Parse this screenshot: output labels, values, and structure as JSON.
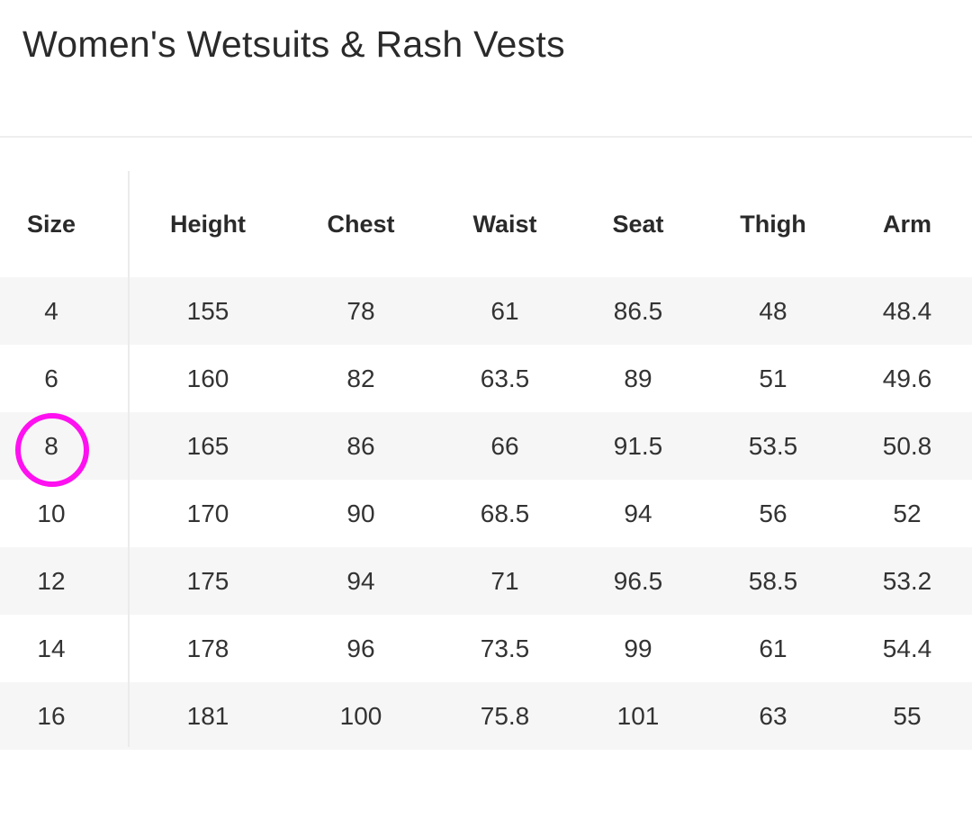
{
  "title": "Women's Wetsuits & Rash Vests",
  "highlight_color": "#ff10f0",
  "highlighted_size": "8",
  "table": {
    "headers": [
      "Size",
      "Height",
      "Chest",
      "Waist",
      "Seat",
      "Thigh",
      "Arm"
    ],
    "rows": [
      [
        "4",
        "155",
        "78",
        "61",
        "86.5",
        "48",
        "48.4"
      ],
      [
        "6",
        "160",
        "82",
        "63.5",
        "89",
        "51",
        "49.6"
      ],
      [
        "8",
        "165",
        "86",
        "66",
        "91.5",
        "53.5",
        "50.8"
      ],
      [
        "10",
        "170",
        "90",
        "68.5",
        "94",
        "56",
        "52"
      ],
      [
        "12",
        "175",
        "94",
        "71",
        "96.5",
        "58.5",
        "53.2"
      ],
      [
        "14",
        "178",
        "96",
        "73.5",
        "99",
        "61",
        "54.4"
      ],
      [
        "16",
        "181",
        "100",
        "75.8",
        "101",
        "63",
        "55"
      ]
    ]
  }
}
